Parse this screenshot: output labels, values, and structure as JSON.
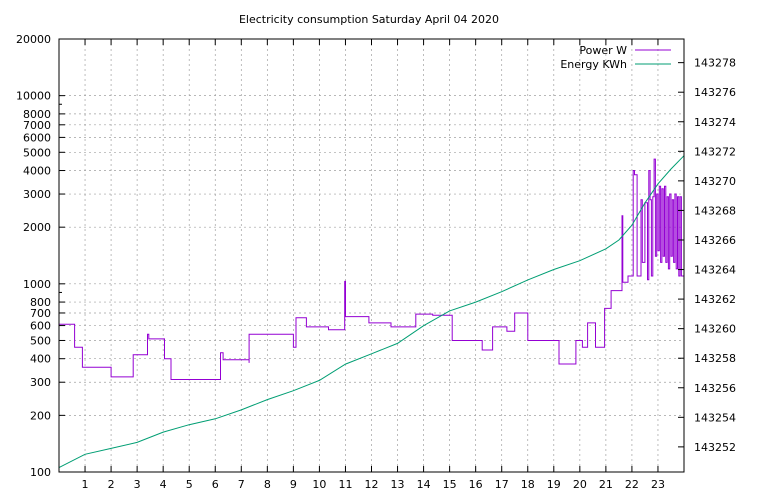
{
  "chart_data": {
    "type": "line",
    "title": "Electricity consumption Saturday April 04 2020",
    "grid": true,
    "legend_placement": "top-right",
    "x_axis": {
      "range": [
        0,
        24
      ],
      "ticks": [
        "1",
        "2",
        "3",
        "4",
        "5",
        "6",
        "7",
        "8",
        "9",
        "10",
        "11",
        "12",
        "13",
        "14",
        "15",
        "16",
        "17",
        "18",
        "19",
        "20",
        "21",
        "22",
        "23"
      ]
    },
    "y_axis_left": {
      "scale": "log",
      "range": [
        100,
        20000
      ],
      "tick_values": [
        100,
        200,
        300,
        400,
        500,
        600,
        700,
        800,
        1000,
        2000,
        3000,
        4000,
        5000,
        6000,
        7000,
        8000,
        10000,
        20000
      ],
      "ticks": [
        "100",
        "200",
        "300",
        "400",
        "500",
        "600",
        "700",
        "800",
        "1000",
        "2000",
        "3000",
        "4000",
        "5000",
        "6000",
        "7000",
        "8000",
        "10000",
        "20000"
      ]
    },
    "y_axis_right": {
      "scale": "linear",
      "range": [
        143250.3,
        143279.6
      ],
      "tick_values": [
        143252,
        143254,
        143256,
        143258,
        143260,
        143262,
        143264,
        143266,
        143268,
        143270,
        143272,
        143274,
        143276,
        143278
      ],
      "ticks": [
        "143252",
        "143254",
        "143256",
        "143258",
        "143260",
        "143262",
        "143264",
        "143266",
        "143268",
        "143270",
        "143272",
        "143274",
        "143276",
        "143278"
      ]
    },
    "series": [
      {
        "name": "Power W",
        "color": "#9400d3",
        "axis": "left",
        "step": true,
        "x": [
          0,
          0.55,
          0.6,
          0.9,
          2.0,
          2.85,
          3.35,
          3.4,
          3.45,
          3.5,
          4.05,
          4.3,
          5.85,
          6.2,
          6.25,
          6.3,
          7.25,
          7.3,
          7.3,
          8.55,
          9.0,
          9.05,
          9.1,
          9.45,
          9.5,
          10.35,
          10.95,
          10.97,
          11.0,
          11.1,
          11.9,
          12.75,
          13.6,
          13.7,
          14.25,
          14.3,
          14.35,
          14.4,
          15.0,
          15.1,
          16.2,
          16.25,
          16.6,
          16.65,
          17.2,
          17.5,
          17.85,
          17.9,
          18.0,
          18.1,
          19.2,
          19.25,
          19.85,
          19.9,
          20.1,
          20.3,
          20.5,
          20.55,
          20.6,
          20.95,
          21.0,
          21.2,
          21.6,
          21.62,
          21.65,
          21.85,
          22.05,
          22.1,
          22.2,
          22.35,
          22.4,
          22.5,
          22.6,
          22.65,
          22.7,
          22.75,
          22.8,
          22.85,
          22.9,
          22.95,
          23.0,
          23.05,
          23.1,
          23.15,
          23.2,
          23.25,
          23.3,
          23.35,
          23.4,
          23.45,
          23.5,
          23.55,
          23.6,
          23.65,
          23.7,
          23.75,
          23.8,
          23.85,
          23.9,
          24.0
        ],
        "y": [
          610,
          610,
          460,
          360,
          320,
          420,
          420,
          540,
          510,
          510,
          400,
          310,
          310,
          430,
          430,
          395,
          395,
          380,
          540,
          540,
          460,
          460,
          660,
          660,
          590,
          570,
          570,
          1030,
          670,
          670,
          620,
          590,
          590,
          690,
          690,
          690,
          680,
          680,
          680,
          500,
          500,
          445,
          445,
          590,
          560,
          700,
          700,
          700,
          500,
          500,
          375,
          375,
          500,
          500,
          460,
          620,
          620,
          620,
          460,
          740,
          740,
          920,
          920,
          2300,
          1020,
          1100,
          4000,
          3800,
          1100,
          2800,
          1300,
          2700,
          1050,
          4000,
          2800,
          1100,
          2900,
          4600,
          1400,
          3000,
          1500,
          3300,
          1300,
          3200,
          1400,
          3300,
          1300,
          2900,
          1200,
          3000,
          1400,
          2800,
          1300,
          3000,
          1200,
          2900,
          1100,
          2900,
          1100,
          1100
        ]
      },
      {
        "name": "Energy KWh",
        "color": "#009e73",
        "axis": "right",
        "step": false,
        "x": [
          0,
          1,
          2,
          3,
          4,
          5,
          6,
          7,
          8,
          9,
          10,
          11,
          12,
          13,
          14,
          15,
          16,
          17,
          18,
          19,
          20,
          21,
          21.5,
          22,
          22.5,
          23,
          23.5,
          24
        ],
        "y": [
          143250.6,
          143251.5,
          143251.9,
          143252.3,
          143253.0,
          143253.5,
          143253.9,
          143254.5,
          143255.2,
          143255.8,
          143256.5,
          143257.6,
          143258.3,
          143259.0,
          143260.2,
          143261.2,
          143261.8,
          143262.5,
          143263.3,
          143264.0,
          143264.6,
          143265.4,
          143266.0,
          143267.0,
          143268.5,
          143269.8,
          143270.8,
          143271.7
        ]
      }
    ]
  }
}
